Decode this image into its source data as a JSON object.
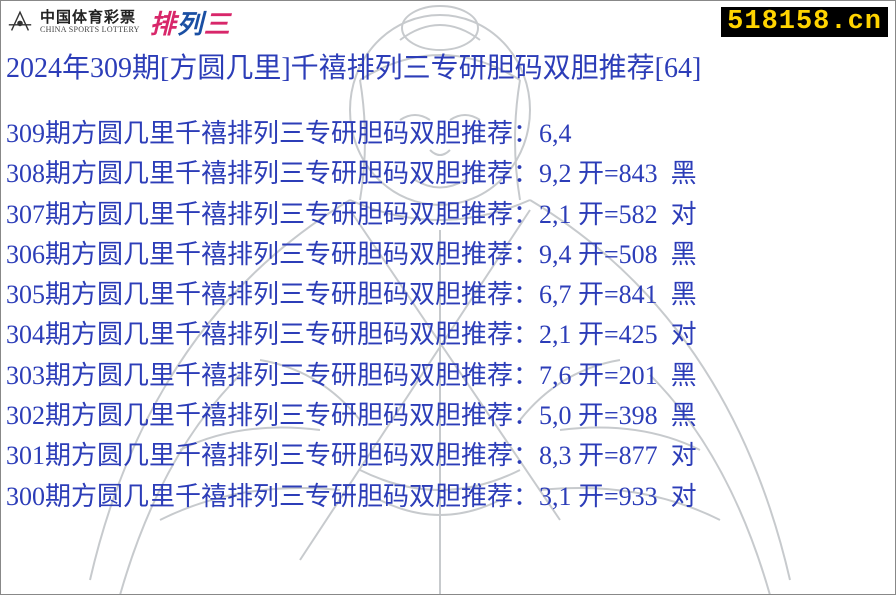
{
  "header": {
    "logo_cn": "中国体育彩票",
    "logo_en": "CHINA SPORTS LOTTERY",
    "product": "排列三",
    "product_color_1": "#d8276a",
    "product_color_2": "#1a4fa3",
    "url": "518158.cn",
    "url_color": "#ffd400",
    "url_bg": "#000000"
  },
  "title": {
    "text": "2024年309期[方圆几里]千禧排列三专研胆码双胆推荐[64]",
    "color": "#2c3db8"
  },
  "row_color": "#2c3db8",
  "rows": [
    {
      "issue": "309",
      "nums": "6,4",
      "open": "",
      "mark": ""
    },
    {
      "issue": "308",
      "nums": "9,2",
      "open": "843",
      "mark": "黑"
    },
    {
      "issue": "307",
      "nums": "2,1",
      "open": "582",
      "mark": "对"
    },
    {
      "issue": "306",
      "nums": "9,4",
      "open": "508",
      "mark": "黑"
    },
    {
      "issue": "305",
      "nums": "6,7",
      "open": "841",
      "mark": "黑"
    },
    {
      "issue": "304",
      "nums": "2,1",
      "open": "425",
      "mark": "对"
    },
    {
      "issue": "303",
      "nums": "7,6",
      "open": "201",
      "mark": "黑"
    },
    {
      "issue": "302",
      "nums": "5,0",
      "open": "398",
      "mark": "黑"
    },
    {
      "issue": "301",
      "nums": "8,3",
      "open": "877",
      "mark": "对"
    },
    {
      "issue": "300",
      "nums": "3,1",
      "open": "933",
      "mark": "对"
    }
  ],
  "row_template": {
    "prefix": "期方圆几里千禧排列三专研胆码双胆推荐：",
    "open_label": " 开=",
    "gap": "  "
  }
}
